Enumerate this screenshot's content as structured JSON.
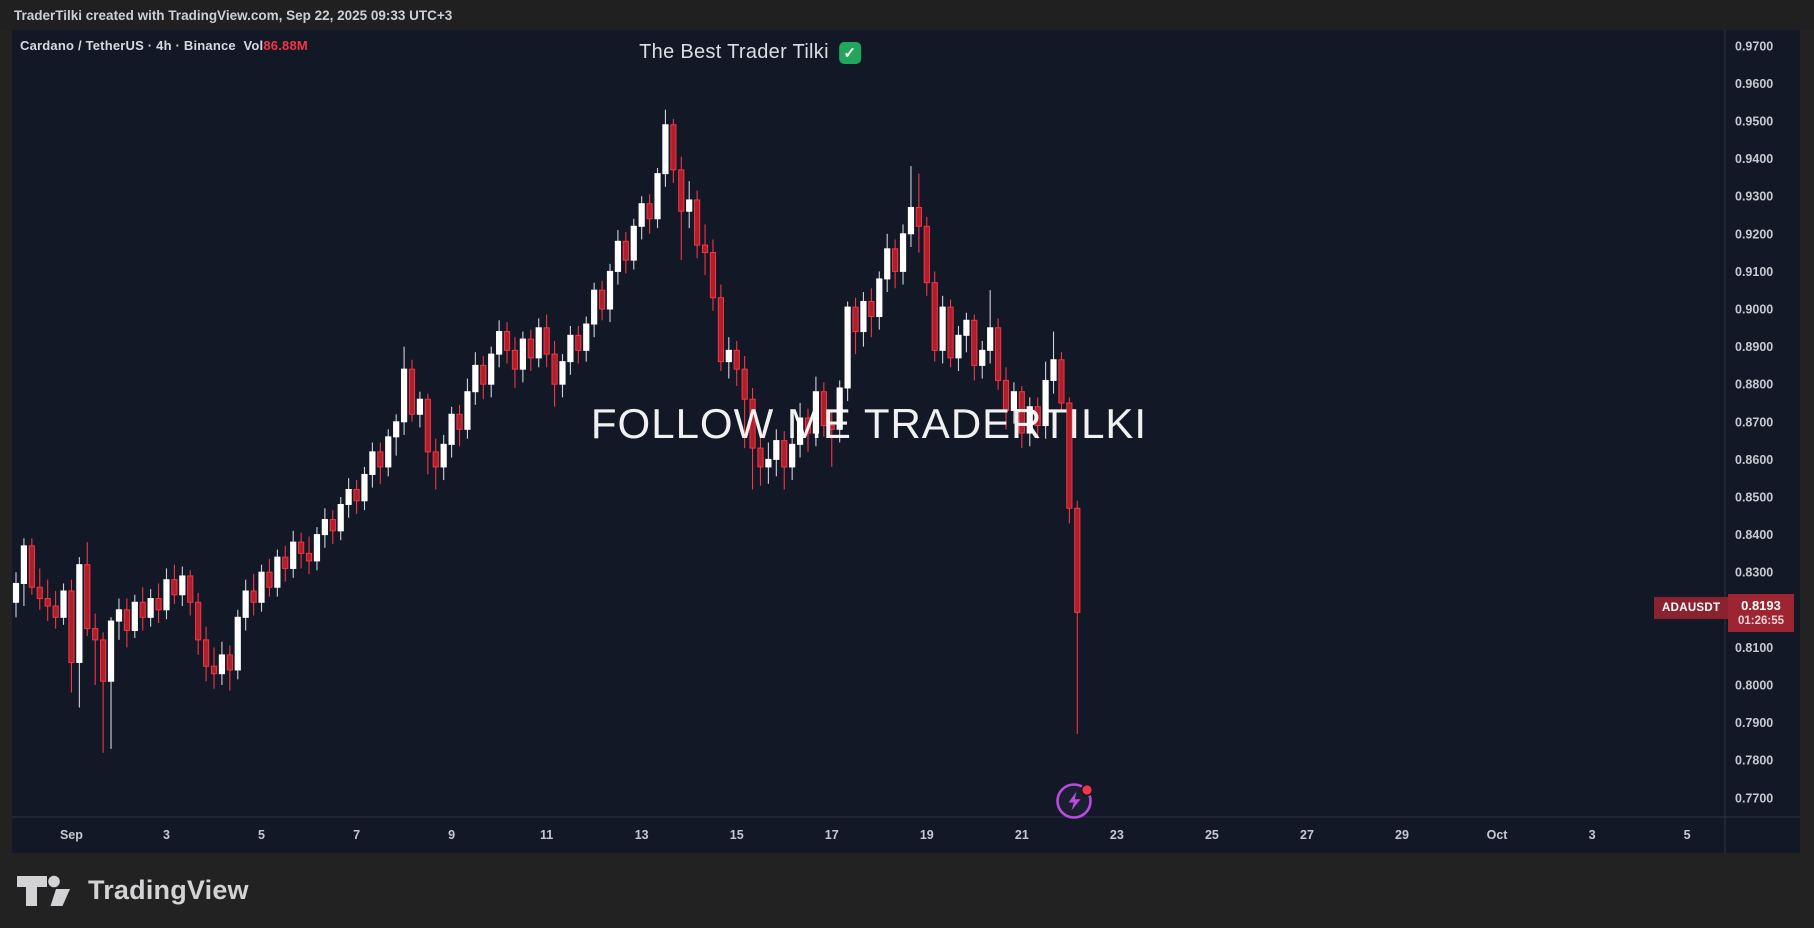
{
  "top_bar": {
    "attribution": "TraderTilki created with TradingView.com, Sep 22, 2025 09:33 UTC+3"
  },
  "chart": {
    "symbol_name": "Cardano / TetherUS",
    "separator": "·",
    "interval": "4h",
    "exchange": "Binance",
    "vol_label": "Vol",
    "vol_value": "86.88M",
    "title": "The Best Trader Tilki",
    "check_mark": "✓",
    "watermark": "FOLLOW ME TRADERTILKI",
    "price_tag": {
      "symbol": "ADAUSDT",
      "price": "0.8193",
      "countdown": "01:26:55"
    }
  },
  "footer": {
    "brand": "TradingView"
  },
  "chart_data": {
    "type": "candlestick",
    "symbol": "ADAUSDT",
    "name": "Cardano / TetherUS",
    "interval": "4h",
    "exchange": "Binance",
    "volume": "86.88M",
    "last_price": 0.8193,
    "countdown": "01:26:55",
    "grid": "off",
    "legend_position": "top-left",
    "price_axis": {
      "side": "right",
      "min_visible": 0.77,
      "max_visible": 0.97,
      "step": 0.01,
      "hidden_tick_behind_label": "0.8200",
      "ticks": [
        "0.9700",
        "0.9600",
        "0.9500",
        "0.9400",
        "0.9300",
        "0.9200",
        "0.9100",
        "0.9000",
        "0.8900",
        "0.8800",
        "0.8700",
        "0.8600",
        "0.8500",
        "0.8400",
        "0.8300",
        "0.8100",
        "0.8000",
        "0.7900",
        "0.7800",
        "0.7700"
      ]
    },
    "time_axis": {
      "labels": [
        {
          "text": "Sep",
          "i": 7,
          "bold": true
        },
        {
          "text": "3",
          "i": 19,
          "bold": false
        },
        {
          "text": "5",
          "i": 31,
          "bold": false
        },
        {
          "text": "7",
          "i": 43,
          "bold": false
        },
        {
          "text": "9",
          "i": 55,
          "bold": false
        },
        {
          "text": "11",
          "i": 67,
          "bold": false
        },
        {
          "text": "13",
          "i": 79,
          "bold": false
        },
        {
          "text": "15",
          "i": 91,
          "bold": false
        },
        {
          "text": "17",
          "i": 103,
          "bold": false
        },
        {
          "text": "19",
          "i": 115,
          "bold": false
        },
        {
          "text": "21",
          "i": 127,
          "bold": false
        },
        {
          "text": "23",
          "i": 139,
          "bold": false
        },
        {
          "text": "25",
          "i": 151,
          "bold": false
        },
        {
          "text": "27",
          "i": 163,
          "bold": false
        },
        {
          "text": "29",
          "i": 175,
          "bold": false
        },
        {
          "text": "Oct",
          "i": 187,
          "bold": true
        },
        {
          "text": "3",
          "i": 199,
          "bold": false
        },
        {
          "text": "5",
          "i": 211,
          "bold": false
        }
      ]
    },
    "colors": {
      "background": "#121826",
      "up_body": "#ffffff",
      "up_wick": "#ced2dd",
      "down_body_fill": "#ad1f2a",
      "down": "#f23645",
      "axis_text": "#c6c9d2",
      "axis_line": "#2f3542",
      "badge": "#9c2531",
      "tag": "#8b2230",
      "boost_purple": "#bb4be0",
      "check_green": "#23a55c"
    },
    "candles": [
      [
        0.822,
        0.83,
        0.818,
        0.827
      ],
      [
        0.827,
        0.839,
        0.821,
        0.837
      ],
      [
        0.837,
        0.839,
        0.824,
        0.826
      ],
      [
        0.826,
        0.831,
        0.82,
        0.823
      ],
      [
        0.823,
        0.828,
        0.817,
        0.821
      ],
      [
        0.821,
        0.825,
        0.815,
        0.818
      ],
      [
        0.818,
        0.827,
        0.816,
        0.825
      ],
      [
        0.825,
        0.828,
        0.798,
        0.806
      ],
      [
        0.806,
        0.834,
        0.794,
        0.832
      ],
      [
        0.832,
        0.838,
        0.813,
        0.815
      ],
      [
        0.815,
        0.819,
        0.8,
        0.812
      ],
      [
        0.812,
        0.814,
        0.782,
        0.801
      ],
      [
        0.801,
        0.818,
        0.783,
        0.817
      ],
      [
        0.817,
        0.823,
        0.812,
        0.82
      ],
      [
        0.82,
        0.823,
        0.81,
        0.8145
      ],
      [
        0.8145,
        0.824,
        0.8125,
        0.822
      ],
      [
        0.822,
        0.826,
        0.8145,
        0.818
      ],
      [
        0.818,
        0.8255,
        0.8155,
        0.823
      ],
      [
        0.823,
        0.827,
        0.8165,
        0.82
      ],
      [
        0.82,
        0.831,
        0.8175,
        0.828
      ],
      [
        0.828,
        0.832,
        0.8215,
        0.824
      ],
      [
        0.824,
        0.8315,
        0.821,
        0.829
      ],
      [
        0.829,
        0.8305,
        0.8185,
        0.822
      ],
      [
        0.822,
        0.8245,
        0.808,
        0.812
      ],
      [
        0.812,
        0.8155,
        0.801,
        0.805
      ],
      [
        0.805,
        0.81,
        0.799,
        0.803
      ],
      [
        0.803,
        0.8115,
        0.8,
        0.808
      ],
      [
        0.808,
        0.8105,
        0.7985,
        0.804
      ],
      [
        0.804,
        0.82,
        0.8015,
        0.818
      ],
      [
        0.818,
        0.828,
        0.8145,
        0.825
      ],
      [
        0.825,
        0.8295,
        0.8185,
        0.822
      ],
      [
        0.822,
        0.832,
        0.8195,
        0.83
      ],
      [
        0.83,
        0.8335,
        0.8235,
        0.826
      ],
      [
        0.826,
        0.836,
        0.8235,
        0.834
      ],
      [
        0.834,
        0.837,
        0.8275,
        0.831
      ],
      [
        0.831,
        0.841,
        0.8285,
        0.838
      ],
      [
        0.838,
        0.8405,
        0.831,
        0.835
      ],
      [
        0.835,
        0.8395,
        0.8295,
        0.833
      ],
      [
        0.833,
        0.842,
        0.8305,
        0.84
      ],
      [
        0.84,
        0.847,
        0.8365,
        0.844
      ],
      [
        0.844,
        0.8465,
        0.8375,
        0.841
      ],
      [
        0.841,
        0.85,
        0.8385,
        0.848
      ],
      [
        0.848,
        0.855,
        0.8445,
        0.852
      ],
      [
        0.852,
        0.8545,
        0.8455,
        0.849
      ],
      [
        0.849,
        0.858,
        0.8465,
        0.856
      ],
      [
        0.856,
        0.8645,
        0.8525,
        0.862
      ],
      [
        0.862,
        0.8645,
        0.8535,
        0.858
      ],
      [
        0.858,
        0.868,
        0.8555,
        0.866
      ],
      [
        0.866,
        0.872,
        0.861,
        0.87
      ],
      [
        0.87,
        0.89,
        0.8665,
        0.884
      ],
      [
        0.884,
        0.8865,
        0.87,
        0.872
      ],
      [
        0.872,
        0.878,
        0.8685,
        0.876
      ],
      [
        0.876,
        0.8775,
        0.856,
        0.862
      ],
      [
        0.862,
        0.8655,
        0.852,
        0.858
      ],
      [
        0.858,
        0.8665,
        0.8545,
        0.864
      ],
      [
        0.864,
        0.874,
        0.8605,
        0.872
      ],
      [
        0.872,
        0.8745,
        0.8635,
        0.868
      ],
      [
        0.868,
        0.8815,
        0.8655,
        0.878
      ],
      [
        0.878,
        0.8885,
        0.8745,
        0.885
      ],
      [
        0.885,
        0.8875,
        0.876,
        0.88
      ],
      [
        0.88,
        0.89,
        0.8765,
        0.888
      ],
      [
        0.888,
        0.897,
        0.8845,
        0.894
      ],
      [
        0.894,
        0.8965,
        0.8855,
        0.889
      ],
      [
        0.889,
        0.8925,
        0.879,
        0.884
      ],
      [
        0.884,
        0.894,
        0.8805,
        0.892
      ],
      [
        0.892,
        0.8945,
        0.8835,
        0.887
      ],
      [
        0.887,
        0.8975,
        0.8845,
        0.895
      ],
      [
        0.895,
        0.8985,
        0.8845,
        0.888
      ],
      [
        0.888,
        0.8915,
        0.874,
        0.88
      ],
      [
        0.88,
        0.888,
        0.8765,
        0.886
      ],
      [
        0.886,
        0.8955,
        0.8825,
        0.893
      ],
      [
        0.893,
        0.8955,
        0.8855,
        0.889
      ],
      [
        0.889,
        0.898,
        0.886,
        0.896
      ],
      [
        0.896,
        0.907,
        0.8925,
        0.905
      ],
      [
        0.905,
        0.9075,
        0.897,
        0.9
      ],
      [
        0.9,
        0.912,
        0.8965,
        0.91
      ],
      [
        0.91,
        0.921,
        0.9065,
        0.918
      ],
      [
        0.918,
        0.9205,
        0.9095,
        0.913
      ],
      [
        0.913,
        0.924,
        0.9105,
        0.922
      ],
      [
        0.922,
        0.93,
        0.9185,
        0.928
      ],
      [
        0.928,
        0.9305,
        0.92,
        0.924
      ],
      [
        0.924,
        0.9375,
        0.9215,
        0.936
      ],
      [
        0.936,
        0.953,
        0.9325,
        0.949
      ],
      [
        0.949,
        0.9505,
        0.9335,
        0.937
      ],
      [
        0.937,
        0.9405,
        0.913,
        0.926
      ],
      [
        0.926,
        0.934,
        0.9215,
        0.929
      ],
      [
        0.929,
        0.9315,
        0.9135,
        0.917
      ],
      [
        0.917,
        0.9225,
        0.909,
        0.915
      ],
      [
        0.915,
        0.9185,
        0.8995,
        0.903
      ],
      [
        0.903,
        0.9065,
        0.8835,
        0.886
      ],
      [
        0.886,
        0.8925,
        0.8815,
        0.889
      ],
      [
        0.889,
        0.8915,
        0.8795,
        0.884
      ],
      [
        0.884,
        0.8875,
        0.863,
        0.876
      ],
      [
        0.876,
        0.879,
        0.852,
        0.863
      ],
      [
        0.863,
        0.8665,
        0.853,
        0.858
      ],
      [
        0.858,
        0.8645,
        0.8535,
        0.86
      ],
      [
        0.86,
        0.868,
        0.8555,
        0.865
      ],
      [
        0.865,
        0.8675,
        0.852,
        0.858
      ],
      [
        0.858,
        0.8665,
        0.8545,
        0.864
      ],
      [
        0.864,
        0.875,
        0.8605,
        0.871
      ],
      [
        0.871,
        0.8735,
        0.862,
        0.867
      ],
      [
        0.867,
        0.882,
        0.8635,
        0.878
      ],
      [
        0.878,
        0.8805,
        0.866,
        0.869
      ],
      [
        0.869,
        0.8725,
        0.858,
        0.868
      ],
      [
        0.868,
        0.881,
        0.8645,
        0.879
      ],
      [
        0.879,
        0.902,
        0.8755,
        0.9005
      ],
      [
        0.9005,
        0.903,
        0.888,
        0.894
      ],
      [
        0.894,
        0.9045,
        0.89,
        0.902
      ],
      [
        0.902,
        0.9055,
        0.8925,
        0.898
      ],
      [
        0.898,
        0.91,
        0.8945,
        0.908
      ],
      [
        0.908,
        0.92,
        0.9045,
        0.916
      ],
      [
        0.916,
        0.9185,
        0.9055,
        0.91
      ],
      [
        0.91,
        0.9225,
        0.9065,
        0.92
      ],
      [
        0.92,
        0.938,
        0.9165,
        0.927
      ],
      [
        0.927,
        0.936,
        0.915,
        0.922
      ],
      [
        0.922,
        0.9245,
        0.9035,
        0.907
      ],
      [
        0.907,
        0.91,
        0.886,
        0.889
      ],
      [
        0.889,
        0.9035,
        0.8855,
        0.9005
      ],
      [
        0.9005,
        0.9025,
        0.8845,
        0.887
      ],
      [
        0.887,
        0.8955,
        0.8835,
        0.893
      ],
      [
        0.893,
        0.899,
        0.8885,
        0.897
      ],
      [
        0.897,
        0.8985,
        0.881,
        0.885
      ],
      [
        0.885,
        0.8915,
        0.8815,
        0.889
      ],
      [
        0.889,
        0.905,
        0.8855,
        0.895
      ],
      [
        0.895,
        0.8975,
        0.8785,
        0.881
      ],
      [
        0.881,
        0.8845,
        0.868,
        0.873
      ],
      [
        0.873,
        0.8805,
        0.8695,
        0.878
      ],
      [
        0.878,
        0.8795,
        0.863,
        0.867
      ],
      [
        0.867,
        0.8765,
        0.8635,
        0.874
      ],
      [
        0.874,
        0.8765,
        0.8655,
        0.869
      ],
      [
        0.869,
        0.886,
        0.8655,
        0.881
      ],
      [
        0.881,
        0.894,
        0.8775,
        0.8865
      ],
      [
        0.8865,
        0.8885,
        0.8725,
        0.875
      ],
      [
        0.875,
        0.8765,
        0.843,
        0.847
      ],
      [
        0.847,
        0.849,
        0.787,
        0.8193
      ]
    ]
  }
}
